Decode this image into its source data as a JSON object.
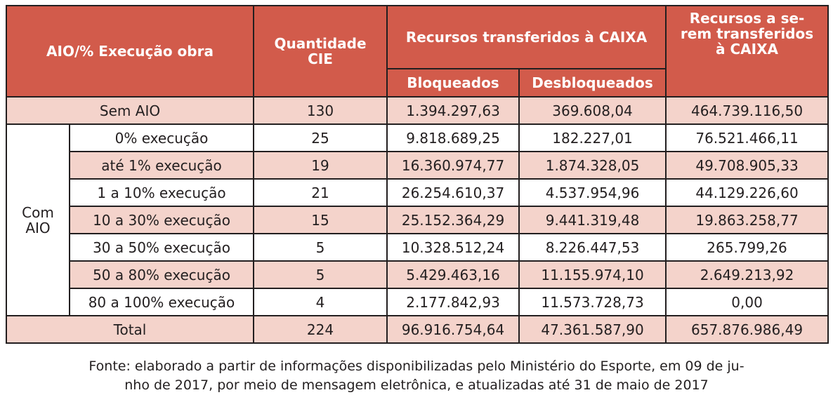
{
  "header": {
    "col1": "AIO/% Execução obra",
    "col2_line1": "Quantidade",
    "col2_line2": "CIE",
    "col3": "Recursos transferidos à CAIXA",
    "col3_sub1": "Bloqueados",
    "col3_sub2": "Desbloqueados",
    "col4_line1": "Recursos a se-",
    "col4_line2": "rem transferidos",
    "col4_line3": "à CAIXA"
  },
  "group_label_line1": "Com",
  "group_label_line2": "AIO",
  "sem_aio": {
    "label": "Sem AIO",
    "quantidade": "130",
    "bloqueados": "1.394.297,63",
    "desbloqueados": "369.608,04",
    "a_transferir": "464.739.116,50"
  },
  "rows": [
    {
      "label": "0% execução",
      "quantidade": "25",
      "bloqueados": "9.818.689,25",
      "desbloqueados": "182.227,01",
      "a_transferir": "76.521.466,11"
    },
    {
      "label": "até 1% execução",
      "quantidade": "19",
      "bloqueados": "16.360.974,77",
      "desbloqueados": "1.874.328,05",
      "a_transferir": "49.708.905,33"
    },
    {
      "label": "1 a 10% execução",
      "quantidade": "21",
      "bloqueados": "26.254.610,37",
      "desbloqueados": "4.537.954,96",
      "a_transferir": "44.129.226,60"
    },
    {
      "label": "10 a 30% execução",
      "quantidade": "15",
      "bloqueados": "25.152.364,29",
      "desbloqueados": "9.441.319,48",
      "a_transferir": "19.863.258,77"
    },
    {
      "label": "30 a 50% execução",
      "quantidade": "5",
      "bloqueados": "10.328.512,24",
      "desbloqueados": "8.226.447,53",
      "a_transferir": "265.799,26"
    },
    {
      "label": "50 a 80% execução",
      "quantidade": "5",
      "bloqueados": "5.429.463,16",
      "desbloqueados": "11.155.974,10",
      "a_transferir": "2.649.213,92"
    },
    {
      "label": "80 a 100% execução",
      "quantidade": "4",
      "bloqueados": "2.177.842,93",
      "desbloqueados": "11.573.728,73",
      "a_transferir": "0,00"
    }
  ],
  "total": {
    "label": "Total",
    "quantidade": "224",
    "bloqueados": "96.916.754,64",
    "desbloqueados": "47.361.587,90",
    "a_transferir": "657.876.986,49"
  },
  "footnote_line1": "Fonte: elaborado a partir de informações disponibilizadas pelo Ministério do Esporte, em 09 de ju-",
  "footnote_line2": "nho de 2017, por meio de mensagem eletrônica, e atualizadas até 31 de maio de 2017",
  "colors": {
    "header_bg": "#d25b4b",
    "header_text": "#ffffff",
    "shaded_row": "#f4d3cb",
    "border": "#231f20"
  }
}
